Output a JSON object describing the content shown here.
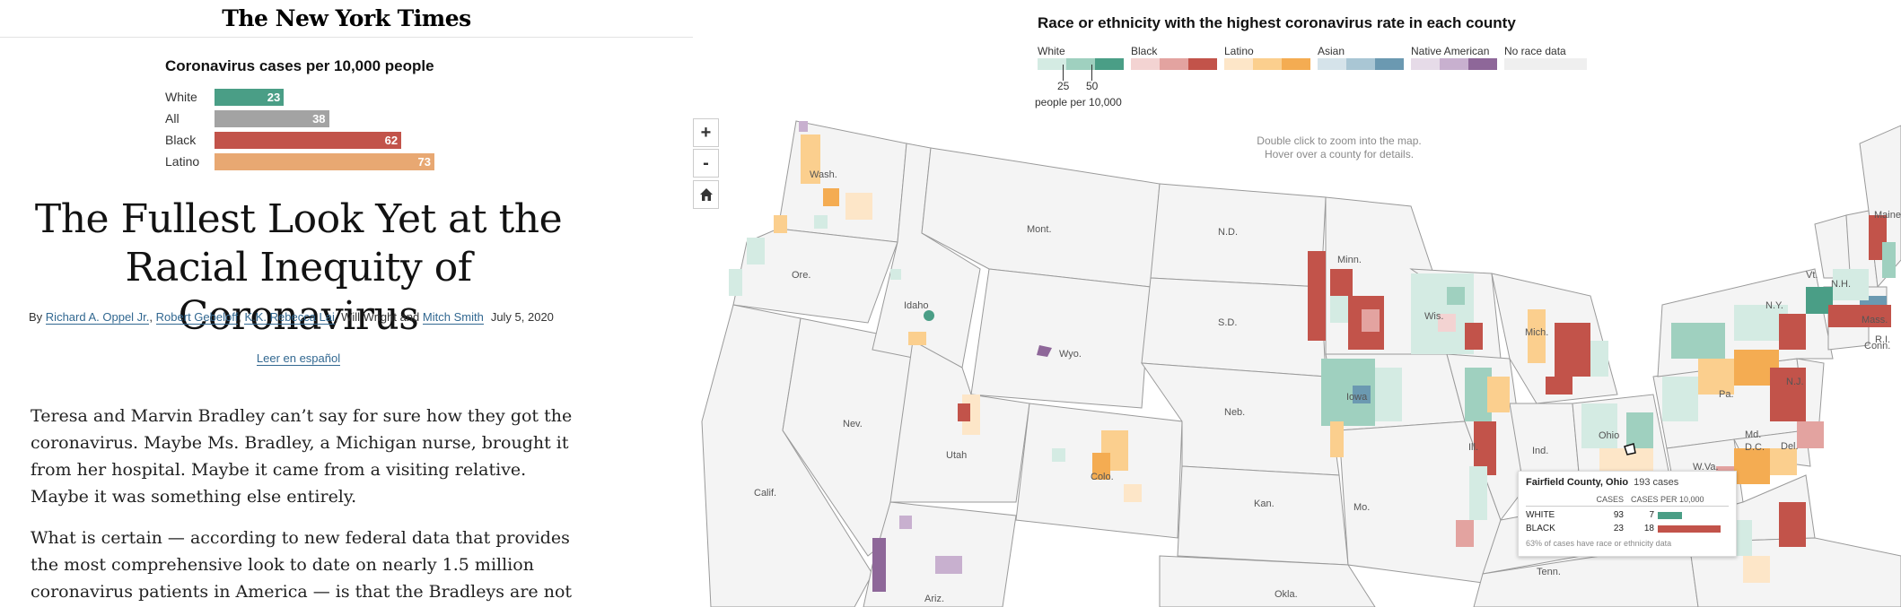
{
  "masthead": {
    "logo": "The New York Times"
  },
  "mini_chart": {
    "title": "Coronavirus cases per 10,000 people",
    "rows": [
      {
        "label": "White",
        "value": "23",
        "color": "#4a9e86"
      },
      {
        "label": "All",
        "value": "38",
        "color": "#a3a3a3"
      },
      {
        "label": "Black",
        "value": "62",
        "color": "#c2534a"
      },
      {
        "label": "Latino",
        "value": "73",
        "color": "#e8a872"
      }
    ]
  },
  "article": {
    "headline_line1": "The Fullest Look Yet at the",
    "headline_line2": "Racial Inequity of Coronavirus",
    "byline": {
      "prefix": "By ",
      "author1": "Richard A. Oppel Jr.",
      "sep1": ", ",
      "author2": "Robert Gebeloff",
      "sep2": ", ",
      "author3": "K.K. Rebecca Lai",
      "sep3": ", Will Wright and ",
      "author4": "Mitch Smith",
      "date": "July 5, 2020"
    },
    "spanish_link": "Leer en español",
    "para1": "Teresa and Marvin Bradley can’t say for sure how they got the coronavirus. Maybe Ms. Bradley, a Michigan nurse, brought it from her hospital. Maybe it came from a visiting relative. Maybe it was something else entirely.",
    "para2": "What is certain — according to new federal data that provides the most comprehensive look to date on nearly 1.5 million coronavirus patients in America — is that the Bradleys are not outliers."
  },
  "map": {
    "title": "Race or ethnicity with the highest coronavirus rate in each county",
    "legend": [
      {
        "name": "White",
        "colors": [
          "#d4ebe3",
          "#9fd0bf",
          "#4a9e86"
        ]
      },
      {
        "name": "Black",
        "colors": [
          "#f3d3d2",
          "#e3a3a0",
          "#c2534a"
        ]
      },
      {
        "name": "Latino",
        "colors": [
          "#fde6c8",
          "#fbcf8e",
          "#f4ac52"
        ]
      },
      {
        "name": "Asian",
        "colors": [
          "#d5e3ea",
          "#a9c6d4",
          "#6b99b1"
        ]
      },
      {
        "name": "Native American",
        "colors": [
          "#e6dbe8",
          "#c8b0cf",
          "#8e6799"
        ]
      },
      {
        "name": "No race data",
        "colors": [
          "#efefef"
        ]
      }
    ],
    "scale": {
      "tick1": "25",
      "tick2": "50",
      "caption": "people per 10,000"
    },
    "hint_line1": "Double click to zoom into the map.",
    "hint_line2": "Hover over a county for details.",
    "zoom_in": "+",
    "zoom_out": "-",
    "states": {
      "wash": "Wash.",
      "ore": "Ore.",
      "calif": "Calif.",
      "nev": "Nev.",
      "idaho": "Idaho",
      "mont": "Mont.",
      "wyo": "Wyo.",
      "utah": "Utah",
      "ariz": "Ariz.",
      "colo": "Colo.",
      "nd": "N.D.",
      "sd": "S.D.",
      "neb": "Neb.",
      "kan": "Kan.",
      "okla": "Okla.",
      "minn": "Minn.",
      "iowa": "Iowa",
      "mo": "Mo.",
      "wis": "Wis.",
      "ill": "Ill.",
      "mich": "Mich.",
      "ind": "Ind.",
      "ohio": "Ohio",
      "tenn": "Tenn.",
      "pa": "Pa.",
      "ny": "N.Y.",
      "vt": "Vt.",
      "nh": "N.H.",
      "maine": "Maine",
      "mass": "Mass.",
      "conn": "Conn.",
      "ri": "R.I.",
      "nj": "N.J.",
      "md": "Md.",
      "dc": "D.C.",
      "del": "Del.",
      "wva": "W.Va."
    },
    "tooltip": {
      "county": "Fairfield County, Ohio",
      "cases": "193 cases",
      "col_cases": "CASES",
      "col_rate": "CASES PER 10,000",
      "rows": [
        {
          "race": "WHITE",
          "cases": "93",
          "rate": "7",
          "rate_value": 7,
          "color": "#4a9e86"
        },
        {
          "race": "BLACK",
          "cases": "23",
          "rate": "18",
          "rate_value": 18,
          "color": "#c2534a"
        }
      ],
      "note": "63% of cases have race or ethnicity data"
    }
  }
}
